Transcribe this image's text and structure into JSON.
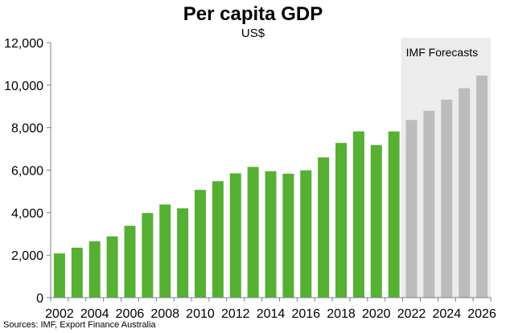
{
  "chart_data": {
    "type": "bar",
    "title": "Per capita GDP",
    "subtitle": "US$",
    "source": "Sources: IMF, Export Finance Australia",
    "forecast_label": "IMF Forecasts",
    "categories": [
      2002,
      2003,
      2004,
      2005,
      2006,
      2007,
      2008,
      2009,
      2010,
      2011,
      2012,
      2013,
      2014,
      2015,
      2016,
      2017,
      2018,
      2019,
      2020,
      2021,
      2022,
      2023,
      2024,
      2025,
      2026
    ],
    "x_tick_labels": [
      "2002",
      "2004",
      "2006",
      "2008",
      "2010",
      "2012",
      "2014",
      "2016",
      "2018",
      "2020",
      "2022",
      "2024",
      "2026"
    ],
    "values": [
      2080,
      2350,
      2650,
      2880,
      3380,
      3980,
      4380,
      4200,
      5070,
      5480,
      5850,
      6150,
      5950,
      5830,
      5990,
      6600,
      7280,
      7820,
      7180,
      7820,
      8360,
      8790,
      9320,
      9860,
      10450
    ],
    "forecast_start": 2022,
    "ylim": [
      0,
      12000
    ],
    "y_ticks": [
      "0",
      "2,000",
      "4,000",
      "6,000",
      "8,000",
      "10,000",
      "12,000"
    ],
    "y_tick_values": [
      0,
      2000,
      4000,
      6000,
      8000,
      10000,
      12000
    ],
    "grid": false,
    "colors": {
      "actual": "#55b033",
      "forecast": "#bcbcbc",
      "forecast_band": "#ececec",
      "axis": "#7f7f7f"
    }
  }
}
